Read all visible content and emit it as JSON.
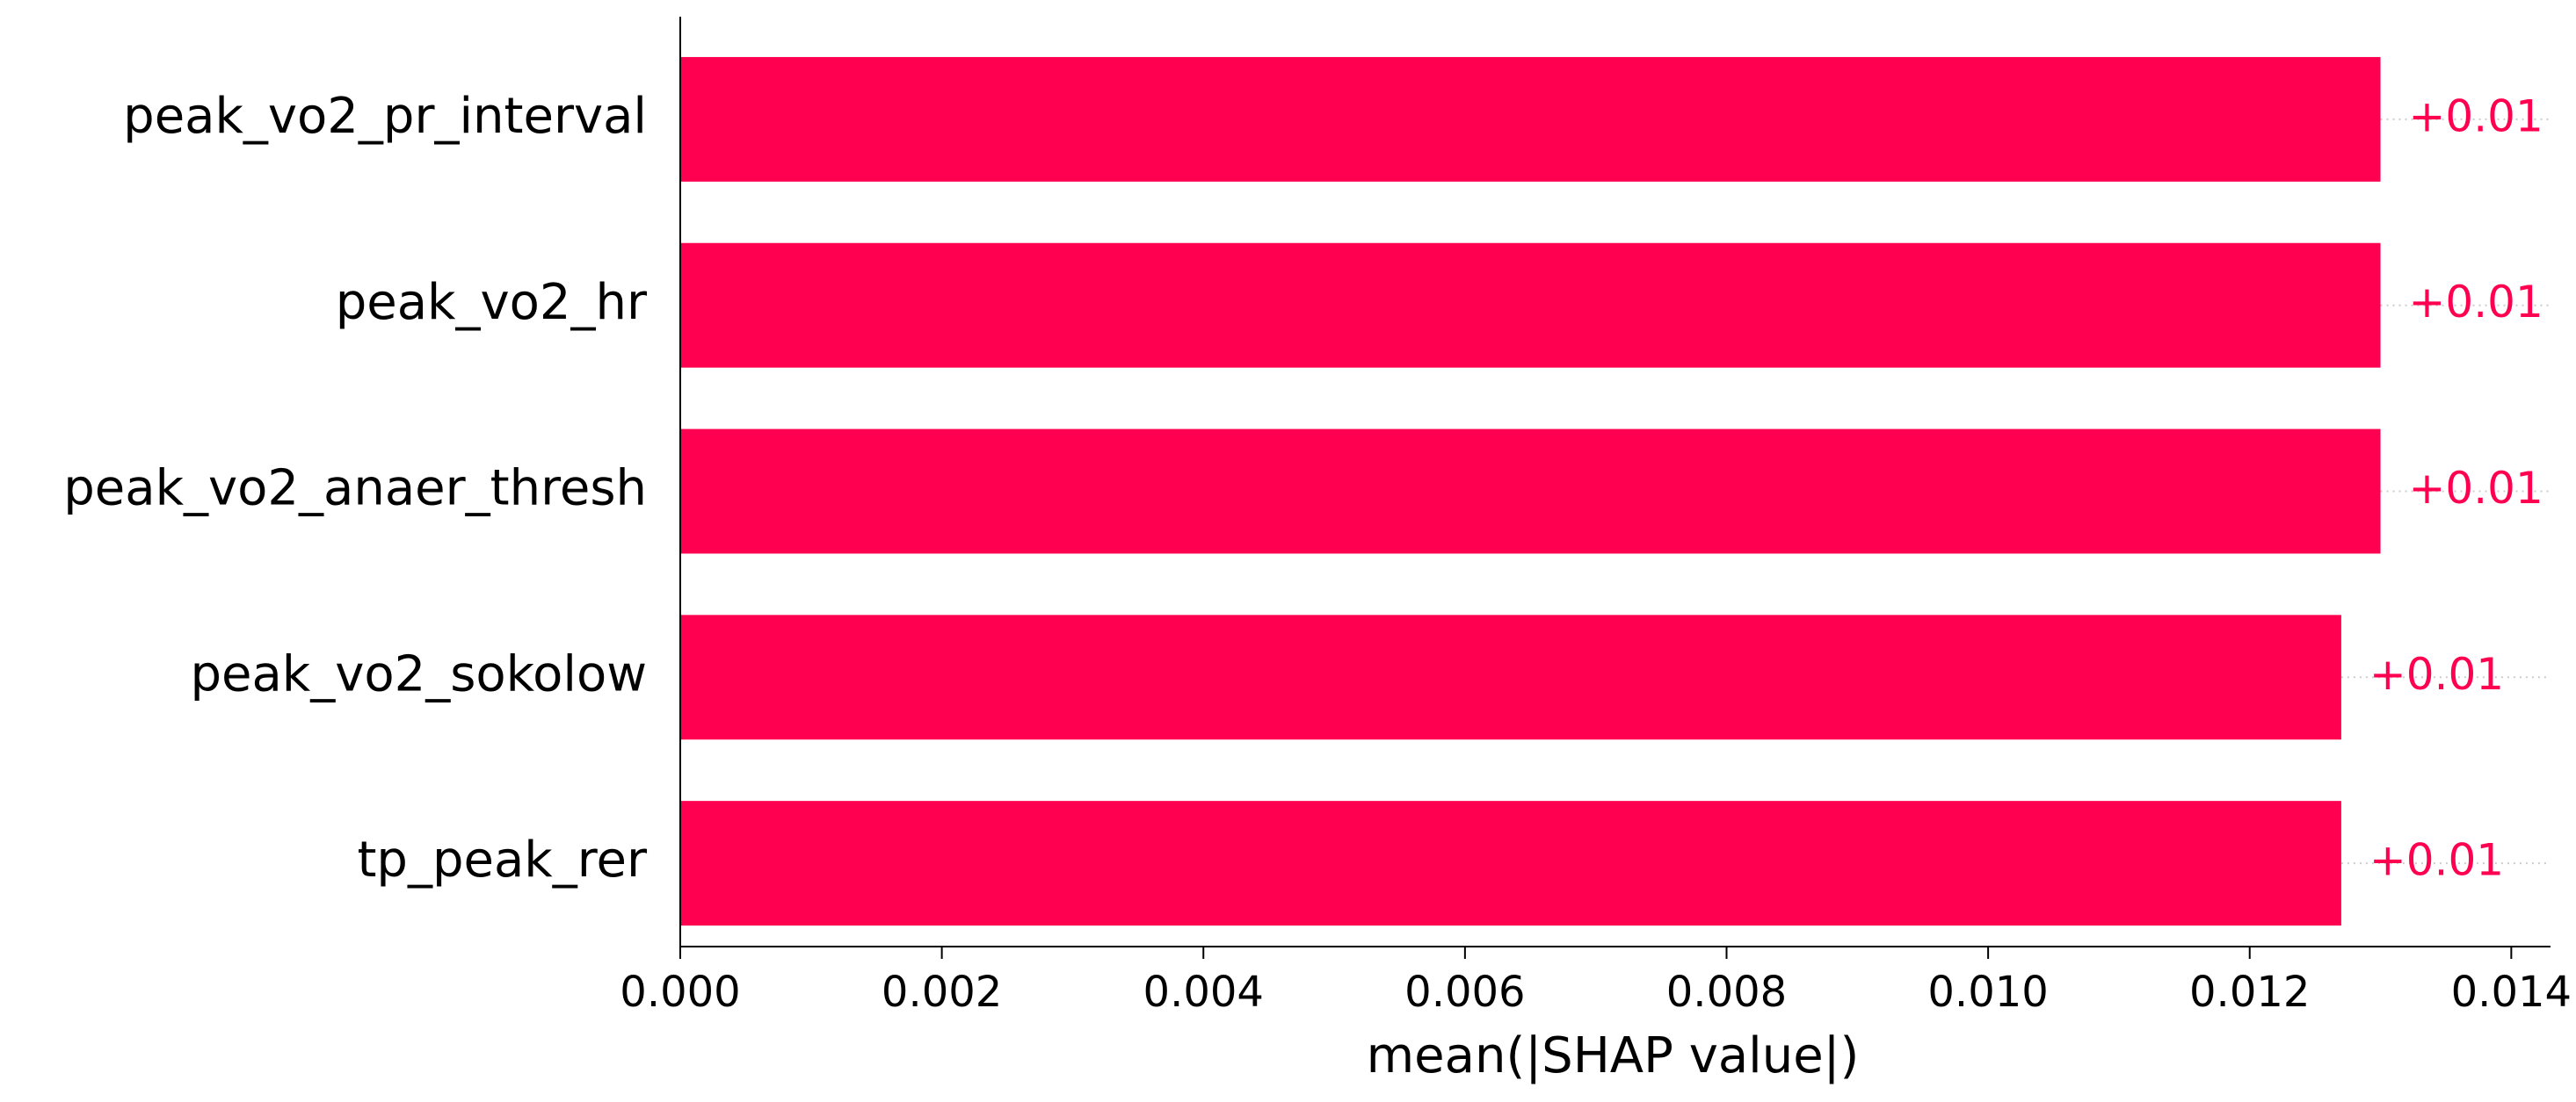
{
  "chart_data": {
    "type": "barh",
    "xlabel": "mean(|SHAP value|)",
    "categories": [
      "peak_vo2_pr_interval",
      "peak_vo2_hr",
      "peak_vo2_anaer_thresh",
      "peak_vo2_sokolow",
      "tp_peak_rer"
    ],
    "values": [
      0.013,
      0.013,
      0.013,
      0.0127,
      0.0127
    ],
    "value_labels": [
      "+0.01",
      "+0.01",
      "+0.01",
      "+0.01",
      "+0.01"
    ],
    "color": "#ff0051",
    "xlim": [
      0,
      0.0143
    ],
    "xticks": [
      {
        "value": 0,
        "label": "0.000"
      },
      {
        "value": 0.002,
        "label": "0.002"
      },
      {
        "value": 0.004,
        "label": "0.004"
      },
      {
        "value": 0.006,
        "label": "0.006"
      },
      {
        "value": 0.008,
        "label": "0.008"
      },
      {
        "value": 0.01,
        "label": "0.010"
      },
      {
        "value": 0.012,
        "label": "0.012"
      },
      {
        "value": 0.014,
        "label": "0.014"
      }
    ]
  }
}
